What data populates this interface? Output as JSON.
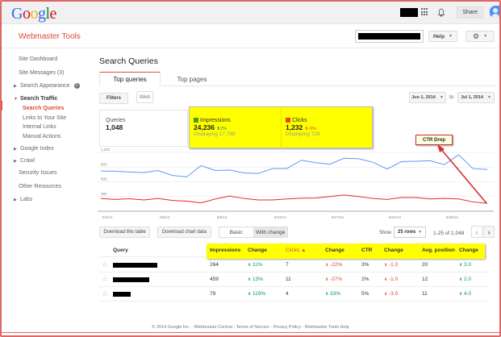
{
  "topbar": {
    "logo_letters": [
      "G",
      "o",
      "o",
      "g",
      "l",
      "e"
    ],
    "logo_colors": [
      "#3369e8",
      "#d50f25",
      "#eeb211",
      "#3369e8",
      "#009925",
      "#d50f25"
    ],
    "share_label": "Share"
  },
  "header": {
    "product_name": "Webmaster Tools",
    "help_label": "Help"
  },
  "sidebar": {
    "items": [
      {
        "label": "Site Dashboard"
      },
      {
        "label": "Site Messages (3)"
      },
      {
        "label": "Search Appearance",
        "expandable": true,
        "info": "i"
      },
      {
        "label": "Search Traffic",
        "expanded": true
      },
      {
        "label": "Search Queries",
        "active": true
      },
      {
        "label": "Links to Your Site"
      },
      {
        "label": "Internal Links"
      },
      {
        "label": "Manual Actions"
      },
      {
        "label": "Google Index",
        "expandable": true
      },
      {
        "label": "Crawl",
        "expandable": true
      },
      {
        "label": "Security Issues"
      },
      {
        "label": "Other Resources"
      },
      {
        "label": "Labs",
        "expandable": true
      }
    ]
  },
  "main": {
    "title": "Search Queries",
    "tabs": [
      {
        "label": "Top queries"
      },
      {
        "label": "Top pages"
      }
    ],
    "filters_label": "Filters",
    "web_label": "Web",
    "date_from": "Jun 1, 2014",
    "date_to_sep": "to",
    "date_to": "Jul 1, 2014",
    "summary": {
      "queries_label": "Queries",
      "queries_value": "1,048",
      "impressions_label": "Impressions",
      "impressions_value": "24,236",
      "impressions_change": "2%",
      "impressions_display": "Displaying 17,788",
      "clicks_label": "Clicks",
      "clicks_value": "1,232",
      "clicks_change": "-5%",
      "clicks_display": "Displaying 729",
      "impressions_color": "#4d9a1a",
      "clicks_color": "#e8490f"
    },
    "annotation": "CTR Drop",
    "table_controls": {
      "download_table": "Download this table",
      "download_chart": "Download chart data",
      "basic": "Basic",
      "with_change": "With change",
      "show_label": "Show",
      "rows_value": "25 rows",
      "range": "1-25 of 1,048",
      "prev": "‹",
      "next": "›"
    },
    "table": {
      "headers": [
        "Query",
        "Impressions",
        "Change",
        "Clicks ▲",
        "Change",
        "CTR",
        "Change",
        "Avg. position",
        "Change"
      ],
      "rows": [
        {
          "impressions": "264",
          "imp_change": "11%",
          "imp_dir": "up",
          "clicks": "7",
          "clk_change": "-22%",
          "clk_dir": "down",
          "ctr": "3%",
          "ctr_change": "-1.0",
          "ctr_dir": "down",
          "pos": "20",
          "pos_change": "3.0",
          "pos_dir": "up"
        },
        {
          "impressions": "459",
          "imp_change": "13%",
          "imp_dir": "up",
          "clicks": "11",
          "clk_change": "-27%",
          "clk_dir": "down",
          "ctr": "2%",
          "ctr_change": "-1.0",
          "ctr_dir": "down",
          "pos": "12",
          "pos_change": "2.0",
          "pos_dir": "up"
        },
        {
          "impressions": "79",
          "imp_change": "119%",
          "imp_dir": "up",
          "clicks": "4",
          "clk_change": "33%",
          "clk_dir": "up",
          "ctr": "5%",
          "ctr_change": "-3.0",
          "ctr_dir": "down",
          "pos": "11",
          "pos_change": "4.0",
          "pos_dir": "up"
        }
      ]
    }
  },
  "footer": {
    "text": "© 2014 Google Inc. - Webmaster Central - Terms of Service - Privacy Policy - Webmaster Tools Help"
  },
  "chart_data": {
    "type": "line",
    "title": "",
    "x_tick_labels": [
      "6/1/14",
      "6/5/14",
      "6/9/14",
      "6/13/14",
      "6/17/14",
      "6/21/14",
      "6/25/14"
    ],
    "y_tick_labels": [
      "1,200",
      "900",
      "600",
      "300"
    ],
    "ylim": [
      0,
      1200
    ],
    "grid": true,
    "x": [
      "6/1",
      "6/2",
      "6/3",
      "6/4",
      "6/5",
      "6/6",
      "6/7",
      "6/8",
      "6/9",
      "6/10",
      "6/11",
      "6/12",
      "6/13",
      "6/14",
      "6/15",
      "6/16",
      "6/17",
      "6/18",
      "6/19",
      "6/20",
      "6/21",
      "6/22",
      "6/23",
      "6/24",
      "6/25",
      "6/26",
      "6/27",
      "6/28"
    ],
    "series": [
      {
        "name": "Impressions",
        "color": "#5b9bef",
        "values": [
          820,
          815,
          800,
          790,
          830,
          730,
          700,
          930,
          830,
          840,
          780,
          770,
          870,
          870,
          1040,
          990,
          960,
          1080,
          1070,
          1000,
          860,
          1010,
          1020,
          1030,
          950,
          1150,
          870,
          850
        ]
      },
      {
        "name": "Clicks",
        "color": "#e8262b",
        "values": [
          260,
          240,
          255,
          230,
          260,
          220,
          205,
          170,
          250,
          310,
          260,
          230,
          230,
          250,
          265,
          270,
          300,
          330,
          300,
          260,
          240,
          280,
          280,
          250,
          260,
          250,
          190,
          160
        ]
      }
    ]
  }
}
